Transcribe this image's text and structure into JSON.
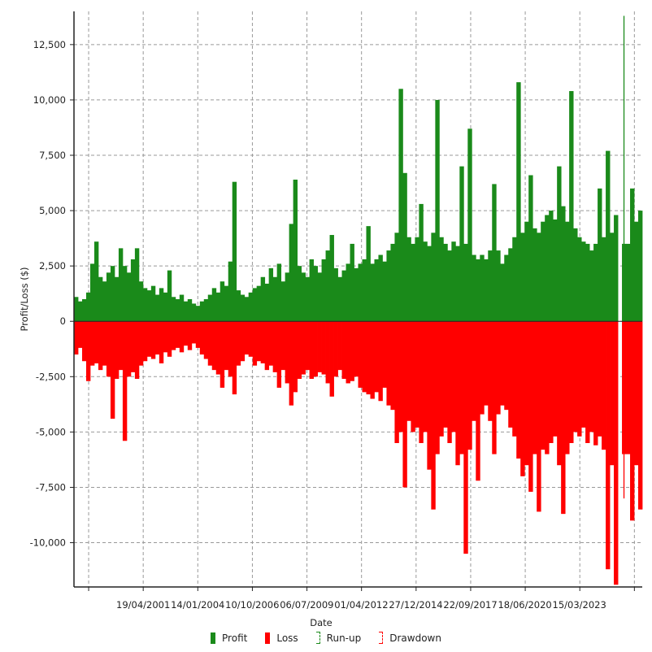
{
  "chart_data": {
    "type": "bar",
    "title": "",
    "xlabel": "Date",
    "ylabel": "Profit/Loss ($)",
    "ylim": [
      -12000,
      14000
    ],
    "yticks": [
      12500,
      10000,
      7500,
      5000,
      2500,
      0,
      -2500,
      -5000,
      -7500,
      -10000
    ],
    "ytick_labels": [
      "12,500",
      "10,000",
      "7,500",
      "5,000",
      "2,500",
      "0",
      "-2,500",
      "-5,000",
      "-7,500",
      "-10,000"
    ],
    "x_range": [
      "1997-10-27",
      "2026-05-11"
    ],
    "tick_spacing_days": 1001,
    "xticks": [
      {
        "date": "2001-04-19",
        "label": "19/04/2001"
      },
      {
        "date": "2004-01-14",
        "label": "14/01/2004"
      },
      {
        "date": "2006-10-10",
        "label": "10/10/2006"
      },
      {
        "date": "2009-07-06",
        "label": "06/07/2009"
      },
      {
        "date": "2012-04-01",
        "label": "01/04/2012"
      },
      {
        "date": "2014-12-27",
        "label": "27/12/2014"
      },
      {
        "date": "2017-09-22",
        "label": "22/09/2017"
      },
      {
        "date": "2020-06-18",
        "label": "18/06/2020"
      },
      {
        "date": "2023-03-15",
        "label": "15/03/2023"
      }
    ],
    "grid": true,
    "legend_position": "bottom-center",
    "legend": [
      {
        "name": "Profit",
        "color": "#1a8a1a",
        "style": "solid"
      },
      {
        "name": "Loss",
        "color": "#ff0000",
        "style": "solid"
      },
      {
        "name": "Run-up",
        "color": "#1a8a1a",
        "style": "hatched"
      },
      {
        "name": "Drawdown",
        "color": "#ff0000",
        "style": "hatched"
      }
    ],
    "series": [
      {
        "name": "Profit",
        "color": "#1a8a1a",
        "values": [
          1100,
          900,
          1000,
          1300,
          2600,
          3600,
          2000,
          1800,
          2200,
          2500,
          2000,
          3300,
          2500,
          2200,
          2800,
          3300,
          1800,
          1500,
          1400,
          1600,
          1200,
          1500,
          1300,
          2300,
          1100,
          1000,
          1200,
          900,
          1000,
          800,
          700,
          900,
          1000,
          1200,
          1500,
          1300,
          1800,
          1600,
          2700,
          6300,
          1400,
          1200,
          1100,
          1300,
          1500,
          1600,
          2000,
          1700,
          2400,
          2000,
          2600,
          1800,
          2200,
          4400,
          6400,
          2500,
          2200,
          2000,
          2800,
          2500,
          2200,
          2800,
          3200,
          3900,
          2400,
          2000,
          2300,
          2600,
          3500,
          2400,
          2600,
          2800,
          4300,
          2600,
          2800,
          3000,
          2700,
          3200,
          3500,
          4000,
          10500,
          6700,
          3800,
          3500,
          3800,
          5300,
          3600,
          3400,
          4000,
          10000,
          3800,
          3500,
          3200,
          3600,
          3400,
          7000,
          3500,
          8700,
          3000,
          2800,
          3000,
          2800,
          3200,
          6200,
          3200,
          2600,
          3000,
          3300,
          3800,
          10800,
          4000,
          4500,
          6600,
          4200,
          4000,
          4500,
          4800,
          5000,
          4600,
          7000,
          5200,
          4500,
          10400,
          4200,
          3800,
          3600,
          3500,
          3200,
          3500,
          6000,
          3800,
          7700,
          4000,
          4800,
          0,
          13800,
          3500,
          6000,
          4500,
          5000
        ]
      },
      {
        "name": "Loss",
        "color": "#ff0000",
        "values": [
          -1500,
          -1200,
          -1800,
          -2700,
          -2000,
          -1900,
          -2200,
          -2000,
          -2500,
          -4400,
          -2600,
          -2200,
          -5400,
          -2500,
          -2300,
          -2600,
          -2000,
          -1800,
          -1600,
          -1700,
          -1500,
          -1900,
          -1400,
          -1600,
          -1300,
          -1200,
          -1400,
          -1100,
          -1300,
          -1000,
          -1200,
          -1500,
          -1700,
          -2000,
          -2200,
          -2400,
          -3000,
          -2200,
          -2500,
          -3300,
          -2000,
          -1800,
          -1500,
          -1600,
          -2000,
          -1800,
          -1900,
          -2200,
          -2000,
          -2300,
          -3000,
          -2200,
          -2800,
          -3800,
          -3200,
          -2600,
          -2400,
          -2200,
          -2600,
          -2500,
          -2300,
          -2400,
          -2800,
          -3400,
          -2500,
          -2200,
          -2600,
          -2800,
          -2700,
          -2500,
          -3000,
          -3200,
          -3300,
          -3500,
          -3200,
          -3600,
          -3000,
          -3800,
          -4000,
          -5500,
          -5000,
          -7500,
          -4500,
          -5000,
          -4800,
          -5500,
          -5000,
          -6700,
          -8500,
          -6000,
          -5200,
          -4800,
          -5500,
          -5000,
          -6500,
          -6000,
          -10500,
          -5800,
          -4500,
          -7200,
          -4200,
          -3800,
          -4500,
          -6000,
          -4200,
          -3800,
          -4000,
          -4800,
          -5200,
          -6200,
          -7000,
          -6500,
          -7700,
          -6000,
          -8600,
          -5800,
          -6000,
          -5500,
          -5200,
          -6500,
          -8700,
          -6000,
          -5500,
          -5000,
          -5200,
          -4800,
          -5500,
          -5000,
          -5600,
          -5200,
          -5800,
          -11200,
          -6500,
          -11900,
          0,
          -8000,
          -6000,
          -9000,
          -6500,
          -8500
        ]
      }
    ]
  }
}
